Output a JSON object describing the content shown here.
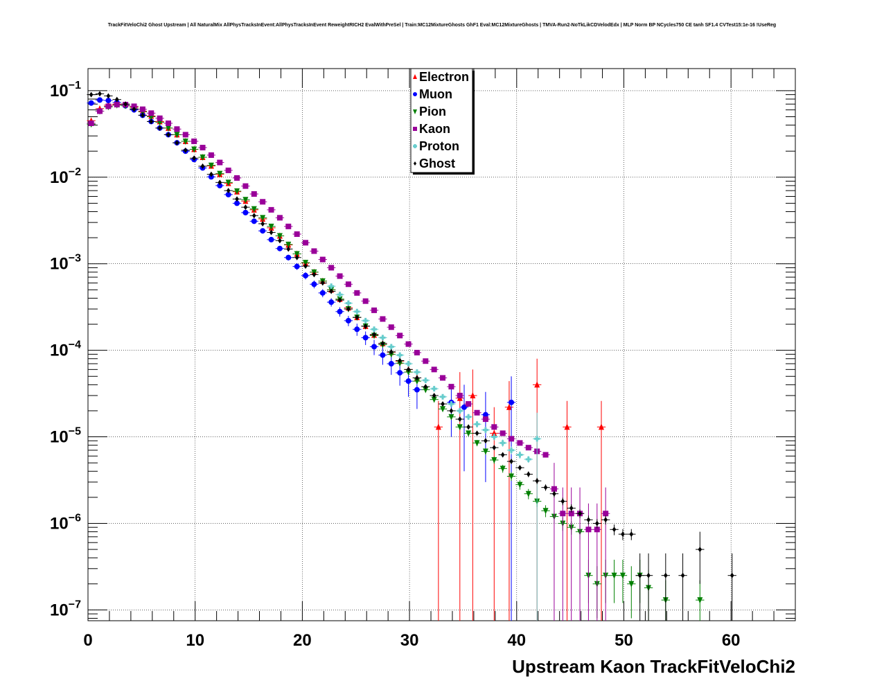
{
  "chart_data": {
    "type": "scatter",
    "title": "TrackFitVeloChi2 Ghost Upstream | All NaturalMix AllPhysTracksInEvent:AllPhysTracksInEvent ReweightRICH2 EvalWithPreSel | Train:MC12MixtureGhosts GhF1 Eval:MC12MixtureGhosts | TMVA-Run2-NoTkLikCDVelodEdx | MLP Norm BP NCycles750 CE tanh SF1.4 CVTest15:1e-16 !UseReg",
    "xlabel": "Upstream Kaon TrackFitVeloChi2",
    "ylabel": "",
    "xlim": [
      0,
      66
    ],
    "ylim": [
      7.5e-08,
      0.18
    ],
    "yscale": "log",
    "grid": true,
    "legend_position": "top-center",
    "x_ticks": [
      "0",
      "10",
      "20",
      "30",
      "40",
      "50",
      "60"
    ],
    "y_ticks": [
      {
        "value": 1e-07,
        "base": "10",
        "exp": "−7"
      },
      {
        "value": 1e-06,
        "base": "10",
        "exp": "−6"
      },
      {
        "value": 1e-05,
        "base": "10",
        "exp": "−5"
      },
      {
        "value": 0.0001,
        "base": "10",
        "exp": "−4"
      },
      {
        "value": 0.001,
        "base": "10",
        "exp": "−3"
      },
      {
        "value": 0.01,
        "base": "10",
        "exp": "−2"
      },
      {
        "value": 0.1,
        "base": "10",
        "exp": "−1"
      }
    ],
    "series": [
      {
        "name": "Electron",
        "color": "#ff0000",
        "marker": "triangle-up",
        "x": [
          0.3,
          1.1,
          1.9,
          2.7,
          3.5,
          4.3,
          5.1,
          5.9,
          6.7,
          7.5,
          8.3,
          9.1,
          9.9,
          10.7,
          11.5,
          12.3,
          13.1,
          13.9,
          14.7,
          15.5,
          16.3,
          17.1,
          17.9,
          18.7,
          19.5,
          20.3,
          21.1,
          21.9,
          22.7,
          23.5,
          24.3,
          25.1,
          25.9,
          26.7,
          27.5,
          28.3,
          29.1,
          29.9,
          30.7,
          32.7,
          34.7,
          35.9,
          37.9,
          39.3,
          41.9,
          44.7,
          47.9
        ],
        "y": [
          0.045,
          0.062,
          0.068,
          0.07,
          0.069,
          0.065,
          0.058,
          0.051,
          0.044,
          0.037,
          0.031,
          0.026,
          0.021,
          0.017,
          0.0135,
          0.0108,
          0.0085,
          0.0068,
          0.0053,
          0.0042,
          0.0033,
          0.0026,
          0.0021,
          0.00165,
          0.0013,
          0.00102,
          0.0008,
          0.00063,
          0.0005,
          0.00039,
          0.00031,
          0.00024,
          0.00019,
          0.00015,
          0.00012,
          9.5e-05,
          7.5e-05,
          6e-05,
          4.8e-05,
          1.3e-05,
          2.8e-05,
          3e-05,
          1.1e-05,
          2.2e-05,
          4e-05,
          1.3e-05,
          1.3e-05
        ],
        "err": [
          0.001,
          0.001,
          0.001,
          0.001,
          0.001,
          0.001,
          0.001,
          0.001,
          0.001,
          0.0008,
          0.0006,
          0.0005,
          0.0004,
          0.0003,
          0.00025,
          0.0002,
          0.00016,
          0.00013,
          0.0001,
          8e-05,
          6e-05,
          5e-05,
          4e-05,
          3e-05,
          2.5e-05,
          2e-05,
          1.6e-05,
          1.4e-05,
          1.2e-05,
          1e-05,
          9e-06,
          8e-06,
          7e-06,
          6e-06,
          6e-06,
          5e-06,
          5e-06,
          5e-06,
          5e-06,
          1.3e-05,
          2.8e-05,
          3e-05,
          1.1e-05,
          2.2e-05,
          4e-05,
          1.3e-05,
          1.3e-05
        ]
      },
      {
        "name": "Muon",
        "color": "#0000ff",
        "marker": "circle",
        "x": [
          0.3,
          1.1,
          1.9,
          2.7,
          3.5,
          4.3,
          5.1,
          5.9,
          6.7,
          7.5,
          8.3,
          9.1,
          9.9,
          10.7,
          11.5,
          12.3,
          13.1,
          13.9,
          14.7,
          15.5,
          16.3,
          17.1,
          17.9,
          18.7,
          19.5,
          20.3,
          21.1,
          21.9,
          22.7,
          23.5,
          24.3,
          25.1,
          25.9,
          26.7,
          27.5,
          28.3,
          29.1,
          29.9,
          30.7,
          33.9,
          35.1,
          37.1,
          39.5
        ],
        "y": [
          0.072,
          0.078,
          0.077,
          0.073,
          0.067,
          0.06,
          0.052,
          0.044,
          0.037,
          0.031,
          0.025,
          0.02,
          0.016,
          0.0128,
          0.0101,
          0.008,
          0.0063,
          0.005,
          0.0039,
          0.0031,
          0.0024,
          0.0019,
          0.0015,
          0.00118,
          0.00093,
          0.00073,
          0.00058,
          0.00046,
          0.00036,
          0.00028,
          0.00022,
          0.000175,
          0.00014,
          0.00011,
          8.8e-05,
          7e-05,
          5.5e-05,
          4.4e-05,
          3.5e-05,
          2.5e-05,
          2.2e-05,
          1.8e-05,
          2.5e-05
        ],
        "err": [
          0.002,
          0.002,
          0.002,
          0.002,
          0.002,
          0.001,
          0.001,
          0.001,
          0.001,
          0.001,
          0.0008,
          0.0007,
          0.0006,
          0.0005,
          0.0004,
          0.00035,
          0.0003,
          0.00025,
          0.0002,
          0.00017,
          0.00014,
          0.00012,
          0.0001,
          9e-05,
          8e-05,
          7e-05,
          6e-05,
          5e-05,
          4e-05,
          3.5e-05,
          3e-05,
          2.8e-05,
          2.5e-05,
          2.2e-05,
          2e-05,
          1.8e-05,
          1.6e-05,
          1.5e-05,
          1.4e-05,
          1.5e-05,
          1.8e-05,
          1.5e-05,
          2.5e-05
        ]
      },
      {
        "name": "Pion",
        "color": "#008000",
        "marker": "triangle-down",
        "x": [
          0.3,
          1.1,
          1.9,
          2.7,
          3.5,
          4.3,
          5.1,
          5.9,
          6.7,
          7.5,
          8.3,
          9.1,
          9.9,
          10.7,
          11.5,
          12.3,
          13.1,
          13.9,
          14.7,
          15.5,
          16.3,
          17.1,
          17.9,
          18.7,
          19.5,
          20.3,
          21.1,
          21.9,
          22.7,
          23.5,
          24.3,
          25.1,
          25.9,
          26.7,
          27.5,
          28.3,
          29.1,
          29.9,
          30.7,
          31.5,
          32.3,
          33.1,
          33.9,
          34.7,
          35.5,
          36.3,
          37.1,
          37.9,
          38.7,
          39.5,
          40.3,
          41.1,
          41.9,
          42.7,
          43.5,
          44.3,
          45.1,
          45.9,
          46.7,
          47.5,
          48.3,
          49.1,
          49.9,
          50.7,
          51.5,
          52.3,
          53.9,
          57.1
        ],
        "y": [
          0.041,
          0.058,
          0.065,
          0.068,
          0.067,
          0.063,
          0.057,
          0.05,
          0.043,
          0.037,
          0.031,
          0.026,
          0.021,
          0.017,
          0.0137,
          0.011,
          0.0087,
          0.0069,
          0.0055,
          0.0043,
          0.0034,
          0.0027,
          0.0021,
          0.00167,
          0.0013,
          0.00103,
          0.0008,
          0.00063,
          0.0005,
          0.00039,
          0.0003,
          0.00024,
          0.00019,
          0.000148,
          0.000116,
          9e-05,
          7.1e-05,
          5.6e-05,
          4.4e-05,
          3.5e-05,
          2.7e-05,
          2.1e-05,
          1.7e-05,
          1.3e-05,
          1.1e-05,
          8.5e-06,
          6.8e-06,
          5.4e-06,
          4.3e-06,
          3.5e-06,
          2.8e-06,
          2.2e-06,
          1.8e-06,
          1.4e-06,
          1.2e-06,
          1e-06,
          9e-07,
          8e-07,
          2.5e-07,
          2e-07,
          2.5e-07,
          2.5e-07,
          2.5e-07,
          2e-07,
          2.5e-07,
          1.8e-07,
          1.3e-07,
          1.3e-07
        ],
        "err": [
          0.0005,
          0.0005,
          0.0005,
          0.0005,
          0.0005,
          0.0005,
          0.0004,
          0.0004,
          0.0003,
          0.0003,
          0.0003,
          0.0002,
          0.0002,
          0.0002,
          0.00015,
          0.00012,
          0.0001,
          8e-05,
          7e-05,
          6e-05,
          5e-05,
          4e-05,
          3e-05,
          2.5e-05,
          2e-05,
          1.7e-05,
          1.4e-05,
          1.2e-05,
          1e-05,
          8e-06,
          7e-06,
          6e-06,
          5e-06,
          4e-06,
          3.5e-06,
          3e-06,
          2.5e-06,
          2e-06,
          1.8e-06,
          1.5e-06,
          1.3e-06,
          1.1e-06,
          1e-06,
          9e-07,
          8e-07,
          7e-07,
          6e-07,
          5e-07,
          4.5e-07,
          4e-07,
          3.5e-07,
          3e-07,
          2.5e-07,
          2.2e-07,
          2e-07,
          1.8e-07,
          1.6e-07,
          1.5e-07,
          1.3e-07,
          1.2e-07,
          1.3e-07,
          1.3e-07,
          1.3e-07,
          1.2e-07,
          1.3e-07,
          1.1e-07,
          9e-08,
          9e-08
        ]
      },
      {
        "name": "Kaon",
        "color": "#990099",
        "marker": "square",
        "x": [
          0.3,
          1.1,
          1.9,
          2.7,
          3.5,
          4.3,
          5.1,
          5.9,
          6.7,
          7.5,
          8.3,
          9.1,
          9.9,
          10.7,
          11.5,
          12.3,
          13.1,
          13.9,
          14.7,
          15.5,
          16.3,
          17.1,
          17.9,
          18.7,
          19.5,
          20.3,
          21.1,
          21.9,
          22.7,
          23.5,
          24.3,
          25.1,
          25.9,
          26.7,
          27.5,
          28.3,
          29.1,
          29.9,
          30.7,
          31.5,
          32.3,
          33.1,
          33.9,
          34.7,
          35.5,
          36.3,
          37.1,
          37.9,
          38.7,
          39.5,
          40.3,
          41.1,
          41.9,
          42.7,
          43.5,
          44.3,
          45.1,
          45.9,
          46.7,
          47.5,
          48.3
        ],
        "y": [
          0.042,
          0.058,
          0.066,
          0.069,
          0.069,
          0.066,
          0.061,
          0.055,
          0.048,
          0.042,
          0.036,
          0.031,
          0.026,
          0.022,
          0.018,
          0.0148,
          0.012,
          0.0098,
          0.0079,
          0.0064,
          0.0052,
          0.0042,
          0.0034,
          0.0027,
          0.0022,
          0.00175,
          0.0014,
          0.00112,
          0.0009,
          0.00072,
          0.00058,
          0.00046,
          0.00037,
          0.00029,
          0.00023,
          0.000185,
          0.000148,
          0.000118,
          9.4e-05,
          7.5e-05,
          6e-05,
          4.8e-05,
          3.8e-05,
          3e-05,
          2.4e-05,
          1.9e-05,
          1.6e-05,
          1.3e-05,
          1.1e-05,
          9.5e-06,
          8.5e-06,
          7.5e-06,
          6.8e-06,
          6.2e-06,
          2.5e-06,
          1.3e-06,
          1.3e-06,
          1.3e-06,
          8.5e-07,
          8.5e-07,
          1.3e-06
        ],
        "err": [
          0.0005,
          0.0005,
          0.0005,
          0.0005,
          0.0005,
          0.0005,
          0.0004,
          0.0004,
          0.0003,
          0.0003,
          0.0003,
          0.0002,
          0.0002,
          0.0002,
          0.00015,
          0.00012,
          0.0001,
          8e-05,
          7e-05,
          6e-05,
          5e-05,
          4e-05,
          3e-05,
          2.5e-05,
          2e-05,
          1.7e-05,
          1.4e-05,
          1.2e-05,
          1e-05,
          8e-06,
          7e-06,
          6e-06,
          5e-06,
          4e-06,
          3.5e-06,
          3e-06,
          2.5e-06,
          2e-06,
          1.8e-06,
          1.5e-06,
          1.3e-06,
          1.1e-06,
          1e-06,
          9e-07,
          8e-07,
          7e-07,
          6e-07,
          5e-07,
          4.5e-07,
          4e-07,
          3.5e-07,
          3e-07,
          3e-07,
          3e-07,
          2.5e-06,
          1.3e-06,
          1.3e-06,
          1.3e-06,
          8.5e-07,
          8.5e-07,
          1.3e-06
        ]
      },
      {
        "name": "Proton",
        "color": "#66cccc",
        "marker": "cross",
        "x": [
          22.7,
          23.5,
          24.3,
          25.1,
          25.9,
          26.7,
          27.5,
          28.3,
          29.1,
          29.9,
          30.7,
          31.5,
          32.3,
          33.1,
          33.9,
          34.7,
          35.5,
          36.3,
          37.1,
          37.9,
          38.7,
          39.5,
          40.3,
          41.1,
          41.9
        ],
        "y": [
          0.00055,
          0.00044,
          0.00035,
          0.00028,
          0.00022,
          0.000175,
          0.00014,
          0.00011,
          8.8e-05,
          7e-05,
          5.6e-05,
          4.5e-05,
          3.6e-05,
          2.9e-05,
          2.4e-05,
          2e-05,
          1.7e-05,
          1.4e-05,
          1.2e-05,
          1e-05,
          8.5e-06,
          7e-06,
          6.2e-06,
          5.5e-06,
          9.5e-06
        ],
        "err": [
          2e-05,
          1.7e-05,
          1.5e-05,
          1.2e-05,
          1e-05,
          8e-06,
          7e-06,
          6e-06,
          5e-06,
          4e-06,
          3.5e-06,
          3e-06,
          2.5e-06,
          2e-06,
          1.8e-06,
          1.5e-06,
          1.3e-06,
          1.2e-06,
          1e-06,
          9e-07,
          8e-07,
          7e-07,
          6e-07,
          5e-07,
          9.5e-06
        ]
      },
      {
        "name": "Ghost",
        "color": "#000000",
        "marker": "diamond",
        "x": [
          0.3,
          1.1,
          1.9,
          2.7,
          3.5,
          4.3,
          5.1,
          5.9,
          6.7,
          7.5,
          8.3,
          9.1,
          9.9,
          10.7,
          11.5,
          12.3,
          13.1,
          13.9,
          14.7,
          15.5,
          16.3,
          17.1,
          17.9,
          18.7,
          19.5,
          20.3,
          21.1,
          21.9,
          22.7,
          23.5,
          24.3,
          25.1,
          25.9,
          26.7,
          27.5,
          28.3,
          29.1,
          29.9,
          30.7,
          31.5,
          32.3,
          33.1,
          33.9,
          34.7,
          35.5,
          36.3,
          37.1,
          37.9,
          38.7,
          39.5,
          40.3,
          41.1,
          41.9,
          42.7,
          43.5,
          44.3,
          45.1,
          45.9,
          46.7,
          47.5,
          48.3,
          49.1,
          49.9,
          50.7,
          51.5,
          52.3,
          53.9,
          55.5,
          57.1,
          60.1
        ],
        "y": [
          0.09,
          0.092,
          0.087,
          0.079,
          0.07,
          0.061,
          0.052,
          0.044,
          0.037,
          0.031,
          0.025,
          0.0205,
          0.0166,
          0.0134,
          0.0108,
          0.0087,
          0.007,
          0.0056,
          0.0045,
          0.0036,
          0.0029,
          0.0023,
          0.00185,
          0.00148,
          0.00118,
          0.00094,
          0.00075,
          0.0006,
          0.00048,
          0.00038,
          0.0003,
          0.00024,
          0.00019,
          0.000152,
          0.00012,
          9.6e-05,
          7.6e-05,
          6e-05,
          4.8e-05,
          3.8e-05,
          3e-05,
          2.4e-05,
          2e-05,
          1.6e-05,
          1.3e-05,
          1.1e-05,
          9e-06,
          7.5e-06,
          6.2e-06,
          5.2e-06,
          4.4e-06,
          3.7e-06,
          3.1e-06,
          2.6e-06,
          2.2e-06,
          1.8e-06,
          1.5e-06,
          1.3e-06,
          1.1e-06,
          1e-06,
          1.1e-06,
          8.5e-07,
          7.5e-07,
          7.5e-07,
          2.5e-07,
          2.5e-07,
          2.5e-07,
          2.5e-07,
          5e-07,
          2.5e-07
        ],
        "err": [
          0.0006,
          0.0006,
          0.0006,
          0.0005,
          0.0005,
          0.0004,
          0.0004,
          0.0003,
          0.0003,
          0.0003,
          0.0002,
          0.0002,
          0.00015,
          0.00012,
          0.0001,
          8e-05,
          7e-05,
          6e-05,
          5e-05,
          4e-05,
          3.5e-05,
          3e-05,
          2.5e-05,
          2e-05,
          1.7e-05,
          1.4e-05,
          1.2e-05,
          1e-05,
          8e-06,
          7e-06,
          6e-06,
          5e-06,
          4e-06,
          3.5e-06,
          3e-06,
          2.5e-06,
          2e-06,
          1.8e-06,
          1.5e-06,
          1.3e-06,
          1.1e-06,
          1e-06,
          9e-07,
          8e-07,
          7e-07,
          6e-07,
          5e-07,
          4.5e-07,
          4e-07,
          3.5e-07,
          3e-07,
          2.8e-07,
          2.5e-07,
          2.2e-07,
          2e-07,
          1.8e-07,
          1.6e-07,
          1.5e-07,
          1.3e-07,
          1.2e-07,
          1.3e-07,
          1.2e-07,
          1.1e-07,
          1.1e-07,
          2e-07,
          2e-07,
          2e-07,
          2e-07,
          3e-07,
          2e-07
        ]
      }
    ]
  }
}
